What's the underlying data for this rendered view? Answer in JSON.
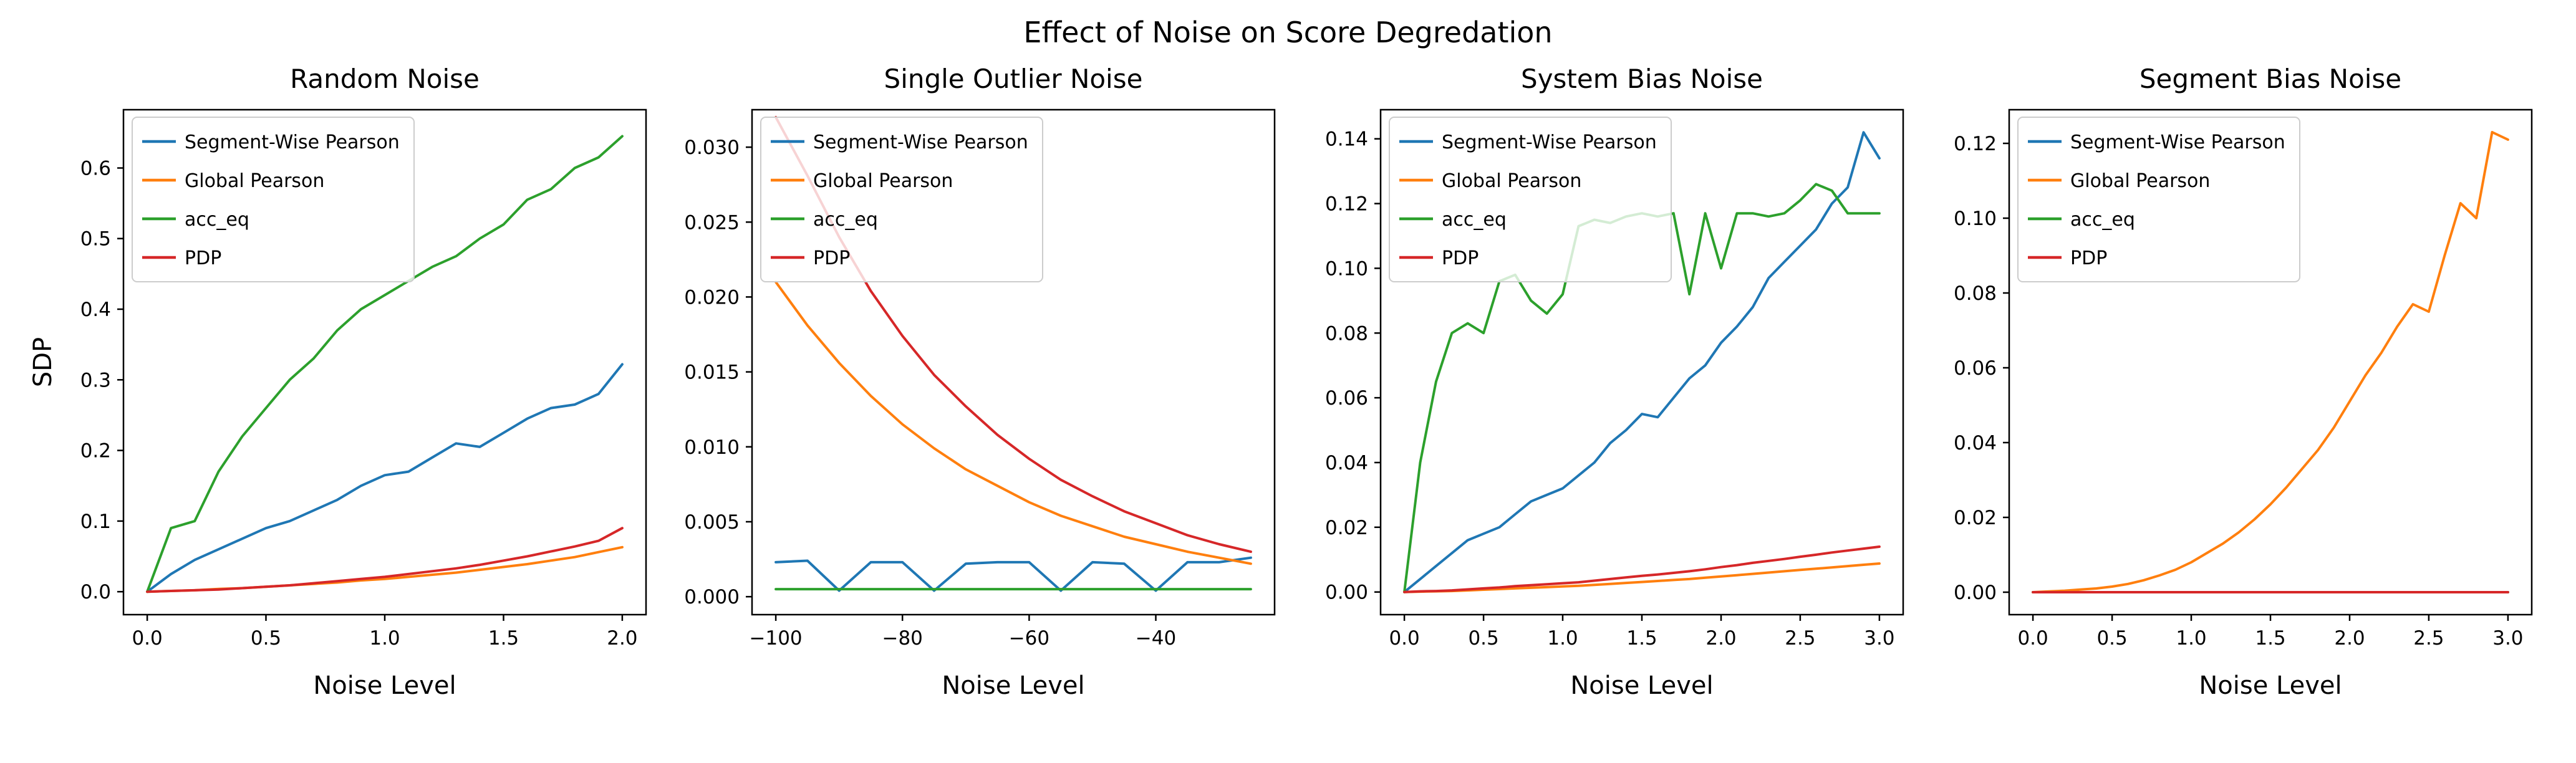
{
  "figure": {
    "title": "Effect of Noise on Score Degredation"
  },
  "chart_data": [
    {
      "type": "line",
      "title": "Random Noise",
      "xlabel": "Noise Level",
      "ylabel": "SDP",
      "xlim": [
        -0.1,
        2.1
      ],
      "ylim": [
        -0.0325,
        0.6825
      ],
      "xticks": [
        0,
        0.5,
        1.0,
        1.5,
        2.0
      ],
      "xtick_labels": [
        "0.0",
        "0.5",
        "1.0",
        "1.5",
        "2.0"
      ],
      "yticks": [
        0,
        0.1,
        0.2,
        0.3,
        0.4,
        0.5,
        0.6
      ],
      "ytick_labels": [
        "0.0",
        "0.1",
        "0.2",
        "0.3",
        "0.4",
        "0.5",
        "0.6"
      ],
      "legend": "upper left",
      "x": [
        0,
        0.1,
        0.2,
        0.3,
        0.4,
        0.5,
        0.6,
        0.7,
        0.8,
        0.9,
        1.0,
        1.1,
        1.2,
        1.3,
        1.4,
        1.5,
        1.6,
        1.7,
        1.8,
        1.9,
        2.0
      ],
      "series": [
        {
          "name": "Segment-Wise Pearson",
          "color": "#1f77b4",
          "y": [
            0.0,
            0.025,
            0.045,
            0.06,
            0.075,
            0.09,
            0.1,
            0.115,
            0.13,
            0.15,
            0.165,
            0.17,
            0.19,
            0.21,
            0.205,
            0.225,
            0.245,
            0.26,
            0.265,
            0.28,
            0.322
          ]
        },
        {
          "name": "Global Pearson",
          "color": "#ff7f0e",
          "y": [
            0.0,
            0.001,
            0.002,
            0.004,
            0.005,
            0.007,
            0.009,
            0.011,
            0.013,
            0.016,
            0.018,
            0.021,
            0.024,
            0.027,
            0.031,
            0.035,
            0.039,
            0.044,
            0.049,
            0.056,
            0.063
          ]
        },
        {
          "name": "acc_eq",
          "color": "#2ca02c",
          "y": [
            0.0,
            0.09,
            0.1,
            0.17,
            0.22,
            0.26,
            0.3,
            0.33,
            0.37,
            0.4,
            0.42,
            0.44,
            0.46,
            0.475,
            0.5,
            0.52,
            0.555,
            0.57,
            0.6,
            0.615,
            0.645
          ]
        },
        {
          "name": "PDP",
          "color": "#d62728",
          "y": [
            0.0,
            0.001,
            0.002,
            0.003,
            0.005,
            0.007,
            0.009,
            0.012,
            0.015,
            0.018,
            0.021,
            0.025,
            0.029,
            0.033,
            0.038,
            0.044,
            0.05,
            0.057,
            0.064,
            0.072,
            0.09
          ]
        }
      ]
    },
    {
      "type": "line",
      "title": "Single Outlier Noise",
      "xlabel": "Noise Level",
      "ylabel": "",
      "xlim": [
        -103.75,
        -21.25
      ],
      "ylim": [
        -0.0012,
        0.0325
      ],
      "xticks": [
        -100,
        -80,
        -60,
        -40
      ],
      "xtick_labels": [
        "−100",
        "−80",
        "−60",
        "−40"
      ],
      "yticks": [
        0,
        0.005,
        0.01,
        0.015,
        0.02,
        0.025,
        0.03
      ],
      "ytick_labels": [
        "0.000",
        "0.005",
        "0.010",
        "0.015",
        "0.020",
        "0.025",
        "0.030"
      ],
      "legend": "upper left",
      "x": [
        -100,
        -95,
        -90,
        -85,
        -80,
        -75,
        -70,
        -65,
        -60,
        -55,
        -50,
        -45,
        -40,
        -35,
        -30,
        -25
      ],
      "series": [
        {
          "name": "Segment-Wise Pearson",
          "color": "#1f77b4",
          "y": [
            0.0023,
            0.0024,
            0.0004,
            0.0023,
            0.0023,
            0.0004,
            0.0022,
            0.0023,
            0.0023,
            0.0004,
            0.0023,
            0.0022,
            0.0004,
            0.0023,
            0.0023,
            0.0026
          ]
        },
        {
          "name": "Global Pearson",
          "color": "#ff7f0e",
          "y": [
            0.021,
            0.0181,
            0.0156,
            0.0134,
            0.0115,
            0.0099,
            0.0085,
            0.0074,
            0.0063,
            0.0054,
            0.0047,
            0.004,
            0.0035,
            0.003,
            0.0026,
            0.0022
          ]
        },
        {
          "name": "acc_eq",
          "color": "#2ca02c",
          "y": [
            0.0005,
            0.0005,
            0.0005,
            0.0005,
            0.0005,
            0.0005,
            0.0005,
            0.0005,
            0.0005,
            0.0005,
            0.0005,
            0.0005,
            0.0005,
            0.0005,
            0.0005,
            0.0005
          ]
        },
        {
          "name": "PDP",
          "color": "#d62728",
          "y": [
            0.032,
            0.0281,
            0.024,
            0.0204,
            0.0174,
            0.0148,
            0.0127,
            0.0108,
            0.0092,
            0.0078,
            0.0067,
            0.0057,
            0.0049,
            0.0041,
            0.0035,
            0.003
          ]
        }
      ]
    },
    {
      "type": "line",
      "title": "System Bias Noise",
      "xlabel": "Noise Level",
      "ylabel": "",
      "xlim": [
        -0.15,
        3.15
      ],
      "ylim": [
        -0.007,
        0.149
      ],
      "xticks": [
        0,
        0.5,
        1.0,
        1.5,
        2.0,
        2.5,
        3.0
      ],
      "xtick_labels": [
        "0.0",
        "0.5",
        "1.0",
        "1.5",
        "2.0",
        "2.5",
        "3.0"
      ],
      "yticks": [
        0,
        0.02,
        0.04,
        0.06,
        0.08,
        0.1,
        0.12,
        0.14
      ],
      "ytick_labels": [
        "0.00",
        "0.02",
        "0.04",
        "0.06",
        "0.08",
        "0.10",
        "0.12",
        "0.14"
      ],
      "legend": "upper left",
      "x": [
        0,
        0.1,
        0.2,
        0.3,
        0.4,
        0.5,
        0.6,
        0.7,
        0.8,
        0.9,
        1.0,
        1.1,
        1.2,
        1.3,
        1.4,
        1.5,
        1.6,
        1.7,
        1.8,
        1.9,
        2.0,
        2.1,
        2.2,
        2.3,
        2.4,
        2.5,
        2.6,
        2.7,
        2.8,
        2.9,
        3.0
      ],
      "series": [
        {
          "name": "Segment-Wise Pearson",
          "color": "#1f77b4",
          "y": [
            0.0,
            0.004,
            0.008,
            0.012,
            0.016,
            0.018,
            0.02,
            0.024,
            0.028,
            0.03,
            0.032,
            0.036,
            0.04,
            0.046,
            0.05,
            0.055,
            0.054,
            0.06,
            0.066,
            0.07,
            0.077,
            0.082,
            0.088,
            0.097,
            0.102,
            0.107,
            0.112,
            0.12,
            0.125,
            0.142,
            0.134
          ]
        },
        {
          "name": "Global Pearson",
          "color": "#ff7f0e",
          "y": [
            0.0,
            0.0001,
            0.0002,
            0.0003,
            0.0005,
            0.0007,
            0.0009,
            0.0011,
            0.0013,
            0.0015,
            0.0017,
            0.0019,
            0.0022,
            0.0025,
            0.0028,
            0.0031,
            0.0034,
            0.0037,
            0.004,
            0.0044,
            0.0048,
            0.0052,
            0.0056,
            0.006,
            0.0064,
            0.0068,
            0.0072,
            0.0076,
            0.008,
            0.0084,
            0.0088
          ]
        },
        {
          "name": "acc_eq",
          "color": "#2ca02c",
          "y": [
            0.0,
            0.04,
            0.065,
            0.08,
            0.083,
            0.08,
            0.096,
            0.098,
            0.09,
            0.086,
            0.092,
            0.113,
            0.115,
            0.114,
            0.116,
            0.117,
            0.116,
            0.117,
            0.092,
            0.117,
            0.1,
            0.117,
            0.117,
            0.116,
            0.117,
            0.121,
            0.126,
            0.124,
            0.117,
            0.117,
            0.117
          ]
        },
        {
          "name": "PDP",
          "color": "#d62728",
          "y": [
            0.0,
            0.0002,
            0.0003,
            0.0005,
            0.0008,
            0.0011,
            0.0014,
            0.0018,
            0.0021,
            0.0024,
            0.0027,
            0.003,
            0.0035,
            0.004,
            0.0045,
            0.005,
            0.0054,
            0.0059,
            0.0064,
            0.007,
            0.0077,
            0.0083,
            0.009,
            0.0096,
            0.0102,
            0.0109,
            0.0115,
            0.0122,
            0.0128,
            0.0134,
            0.014
          ]
        }
      ]
    },
    {
      "type": "line",
      "title": "Segment Bias Noise",
      "xlabel": "Noise Level",
      "ylabel": "",
      "xlim": [
        -0.15,
        3.15
      ],
      "ylim": [
        -0.006,
        0.129
      ],
      "xticks": [
        0,
        0.5,
        1.0,
        1.5,
        2.0,
        2.5,
        3.0
      ],
      "xtick_labels": [
        "0.0",
        "0.5",
        "1.0",
        "1.5",
        "2.0",
        "2.5",
        "3.0"
      ],
      "yticks": [
        0,
        0.02,
        0.04,
        0.06,
        0.08,
        0.1,
        0.12
      ],
      "ytick_labels": [
        "0.00",
        "0.02",
        "0.04",
        "0.06",
        "0.08",
        "0.10",
        "0.12"
      ],
      "legend": "upper left",
      "x": [
        0,
        0.1,
        0.2,
        0.3,
        0.4,
        0.5,
        0.6,
        0.7,
        0.8,
        0.9,
        1.0,
        1.1,
        1.2,
        1.3,
        1.4,
        1.5,
        1.6,
        1.7,
        1.8,
        1.9,
        2.0,
        2.1,
        2.2,
        2.3,
        2.4,
        2.5,
        2.6,
        2.7,
        2.8,
        2.9,
        3.0
      ],
      "series": [
        {
          "name": "Segment-Wise Pearson",
          "color": "#1f77b4",
          "y": [
            0,
            0,
            0,
            0,
            0,
            0,
            0,
            0,
            0,
            0,
            0,
            0,
            0,
            0,
            0,
            0,
            0,
            0,
            0,
            0,
            0,
            0,
            0,
            0,
            0,
            0,
            0,
            0,
            0,
            0,
            0
          ]
        },
        {
          "name": "Global Pearson",
          "color": "#ff7f0e",
          "y": [
            0.0,
            0.0002,
            0.0004,
            0.0007,
            0.001,
            0.0015,
            0.0022,
            0.0032,
            0.0045,
            0.006,
            0.008,
            0.0105,
            0.013,
            0.016,
            0.0195,
            0.0235,
            0.028,
            0.033,
            0.038,
            0.044,
            0.051,
            0.058,
            0.064,
            0.071,
            0.077,
            0.075,
            0.09,
            0.104,
            0.1,
            0.123,
            0.121
          ]
        },
        {
          "name": "acc_eq",
          "color": "#2ca02c",
          "y": [
            0,
            0,
            0,
            0,
            0,
            0,
            0,
            0,
            0,
            0,
            0,
            0,
            0,
            0,
            0,
            0,
            0,
            0,
            0,
            0,
            0,
            0,
            0,
            0,
            0,
            0,
            0,
            0,
            0,
            0,
            0
          ]
        },
        {
          "name": "PDP",
          "color": "#d62728",
          "y": [
            0,
            0,
            0,
            0,
            0,
            0,
            0,
            0,
            0,
            0,
            0,
            0,
            0,
            0,
            0,
            0,
            0,
            0,
            0,
            0,
            0,
            0,
            0,
            0,
            0,
            0,
            0,
            0,
            0,
            0,
            0
          ]
        }
      ]
    }
  ]
}
